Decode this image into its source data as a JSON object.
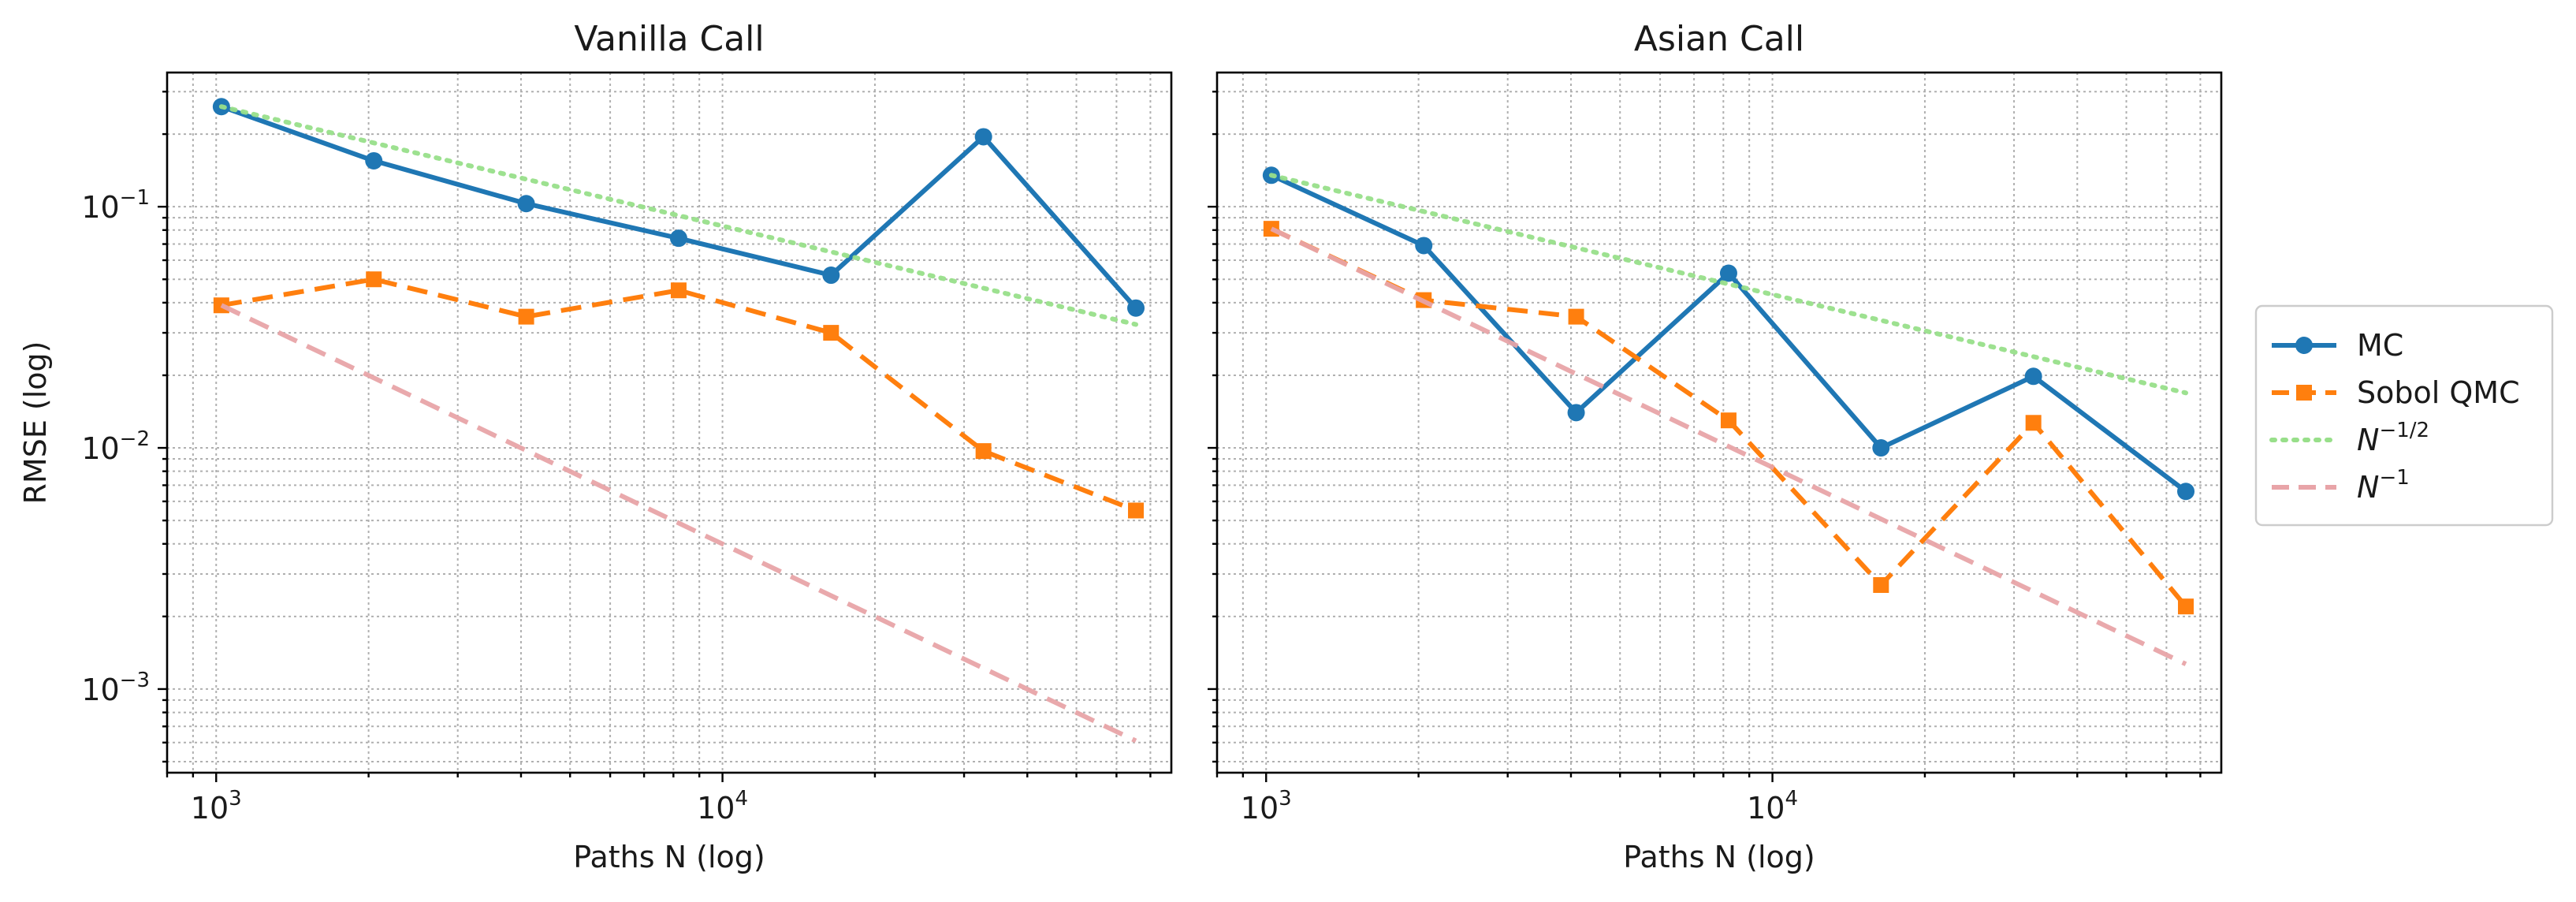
{
  "chart_data": [
    {
      "type": "line",
      "title": "Vanilla Call",
      "xlabel": "Paths N (log)",
      "ylabel": "RMSE (log)",
      "xscale": "log",
      "yscale": "log",
      "xlim": [
        800,
        77000
      ],
      "ylim": [
        0.00045,
        0.36
      ],
      "grid": "major and minor, dotted",
      "x_ticks": [
        1000,
        10000
      ],
      "x_tick_labels": [
        {
          "base": "10",
          "exp": "3"
        },
        {
          "base": "10",
          "exp": "4"
        }
      ],
      "y_ticks": [
        0.001,
        0.01,
        0.1
      ],
      "y_tick_labels": [
        {
          "base": "10",
          "exp": "−3"
        },
        {
          "base": "10",
          "exp": "−2"
        },
        {
          "base": "10",
          "exp": "−1"
        }
      ],
      "series": [
        {
          "name": "MC",
          "color": "#1f77b4",
          "style": "solid",
          "marker": "circle",
          "x": [
            1024,
            2048,
            4096,
            8192,
            16384,
            32768,
            65536
          ],
          "y": [
            0.26,
            0.155,
            0.103,
            0.074,
            0.052,
            0.195,
            0.038
          ]
        },
        {
          "name": "Sobol QMC",
          "color": "#ff7f0e",
          "style": "dashed",
          "marker": "square",
          "x": [
            1024,
            2048,
            4096,
            8192,
            16384,
            32768,
            65536
          ],
          "y": [
            0.039,
            0.05,
            0.035,
            0.045,
            0.03,
            0.0097,
            0.0055
          ]
        },
        {
          "name": "N^{-1/2}",
          "color": "#98df8a",
          "style": "dotted",
          "marker": "none",
          "x": [
            1024,
            65536
          ],
          "y": [
            0.26,
            0.0325
          ]
        },
        {
          "name": "N^{-1}",
          "color": "#e8a4a8",
          "style": "dashed",
          "marker": "none",
          "x": [
            1024,
            65536
          ],
          "y": [
            0.039,
            0.00061
          ]
        }
      ]
    },
    {
      "type": "line",
      "title": "Asian Call",
      "xlabel": "Paths N (log)",
      "ylabel": "",
      "xscale": "log",
      "yscale": "log",
      "xlim": [
        800,
        77000
      ],
      "ylim": [
        0.00045,
        0.36
      ],
      "grid": "major and minor, dotted",
      "x_ticks": [
        1000,
        10000
      ],
      "x_tick_labels": [
        {
          "base": "10",
          "exp": "3"
        },
        {
          "base": "10",
          "exp": "4"
        }
      ],
      "y_ticks": [
        0.001,
        0.01,
        0.1
      ],
      "y_tick_labels": [],
      "series": [
        {
          "name": "MC",
          "color": "#1f77b4",
          "style": "solid",
          "marker": "circle",
          "x": [
            1024,
            2048,
            4096,
            8192,
            16384,
            32768,
            65536
          ],
          "y": [
            0.135,
            0.069,
            0.014,
            0.053,
            0.01,
            0.0198,
            0.0066
          ]
        },
        {
          "name": "Sobol QMC",
          "color": "#ff7f0e",
          "style": "dashed",
          "marker": "square",
          "x": [
            1024,
            2048,
            4096,
            8192,
            16384,
            32768,
            65536
          ],
          "y": [
            0.081,
            0.041,
            0.035,
            0.013,
            0.0027,
            0.0127,
            0.0022
          ]
        },
        {
          "name": "N^{-1/2}",
          "color": "#98df8a",
          "style": "dotted",
          "marker": "none",
          "x": [
            1024,
            65536
          ],
          "y": [
            0.135,
            0.0169
          ]
        },
        {
          "name": "N^{-1}",
          "color": "#e8a4a8",
          "style": "dashed",
          "marker": "none",
          "x": [
            1024,
            65536
          ],
          "y": [
            0.081,
            0.00127
          ]
        }
      ]
    }
  ],
  "legend": {
    "placement": "right",
    "entries": [
      {
        "label": "MC",
        "color": "#1f77b4",
        "style": "solid",
        "marker": "circle"
      },
      {
        "label": "Sobol QMC",
        "color": "#ff7f0e",
        "style": "dashed",
        "marker": "square"
      },
      {
        "label": "N",
        "sup": "−1/2",
        "color": "#98df8a",
        "style": "dotted",
        "marker": "none"
      },
      {
        "label": "N",
        "sup": "−1",
        "color": "#e8a4a8",
        "style": "dashed",
        "marker": "none"
      }
    ]
  }
}
